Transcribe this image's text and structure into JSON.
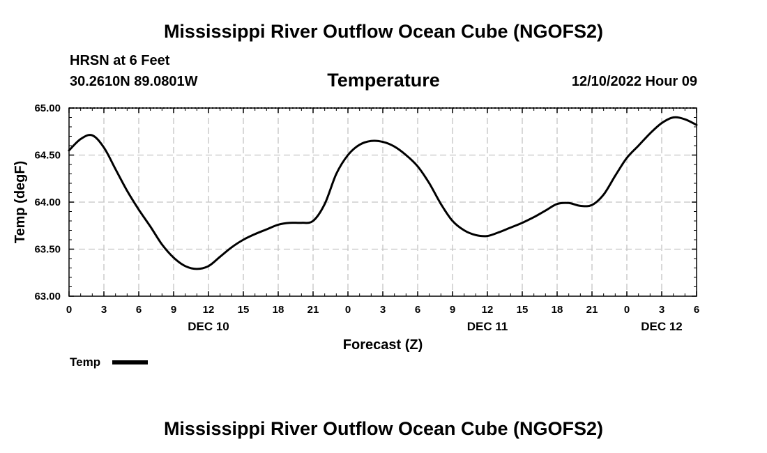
{
  "header": {
    "main_title": "Mississippi River Outflow Ocean Cube (NGOFS2)",
    "station": "HRSN at 6 Feet",
    "coordinates": "30.2610N  89.0801W",
    "variable_title": "Temperature",
    "datetime": "12/10/2022 Hour 09"
  },
  "footer": {
    "title": "Mississippi River Outflow Ocean Cube (NGOFS2)"
  },
  "chart_data": {
    "type": "line",
    "title": "Temperature",
    "xlabel": "Forecast (Z)",
    "ylabel": "Temp (degF)",
    "xlim": [
      0,
      54
    ],
    "ylim": [
      63.0,
      65.0
    ],
    "grid": true,
    "x_ticks": [
      0,
      3,
      6,
      9,
      12,
      15,
      18,
      21,
      24,
      27,
      30,
      33,
      36,
      39,
      42,
      45,
      48,
      51,
      54
    ],
    "x_tick_labels": [
      "0",
      "3",
      "6",
      "9",
      "12",
      "15",
      "18",
      "21",
      "0",
      "3",
      "6",
      "9",
      "12",
      "15",
      "18",
      "21",
      "0",
      "3",
      "6"
    ],
    "y_ticks": [
      63.0,
      63.5,
      64.0,
      64.5,
      65.0
    ],
    "y_tick_labels": [
      "63.00",
      "63.50",
      "64.00",
      "64.50",
      "65.00"
    ],
    "day_labels": [
      {
        "x": 12,
        "label": "DEC 10"
      },
      {
        "x": 36,
        "label": "DEC 11"
      },
      {
        "x": 51,
        "label": "DEC 12"
      }
    ],
    "legend": {
      "label": "Temp",
      "color": "#000000",
      "position": "bottom-left"
    },
    "series": [
      {
        "name": "Temp",
        "color": "#000000",
        "x": [
          0,
          1,
          2,
          3,
          4,
          5,
          6,
          7,
          8,
          9,
          10,
          11,
          12,
          13,
          14,
          15,
          16,
          17,
          18,
          19,
          20,
          21,
          22,
          23,
          24,
          25,
          26,
          27,
          28,
          29,
          30,
          31,
          32,
          33,
          34,
          35,
          36,
          37,
          38,
          39,
          40,
          41,
          42,
          43,
          44,
          45,
          46,
          47,
          48,
          49,
          50,
          51,
          52,
          53,
          54
        ],
        "values": [
          64.55,
          64.67,
          64.71,
          64.58,
          64.35,
          64.12,
          63.92,
          63.74,
          63.55,
          63.41,
          63.32,
          63.29,
          63.32,
          63.42,
          63.52,
          63.6,
          63.66,
          63.71,
          63.76,
          63.78,
          63.78,
          63.8,
          63.98,
          64.3,
          64.5,
          64.61,
          64.65,
          64.64,
          64.59,
          64.5,
          64.38,
          64.2,
          63.98,
          63.8,
          63.7,
          63.65,
          63.64,
          63.68,
          63.73,
          63.78,
          63.84,
          63.91,
          63.98,
          63.99,
          63.96,
          63.97,
          64.08,
          64.28,
          64.47,
          64.6,
          64.73,
          64.84,
          64.9,
          64.88,
          64.82
        ]
      }
    ]
  }
}
